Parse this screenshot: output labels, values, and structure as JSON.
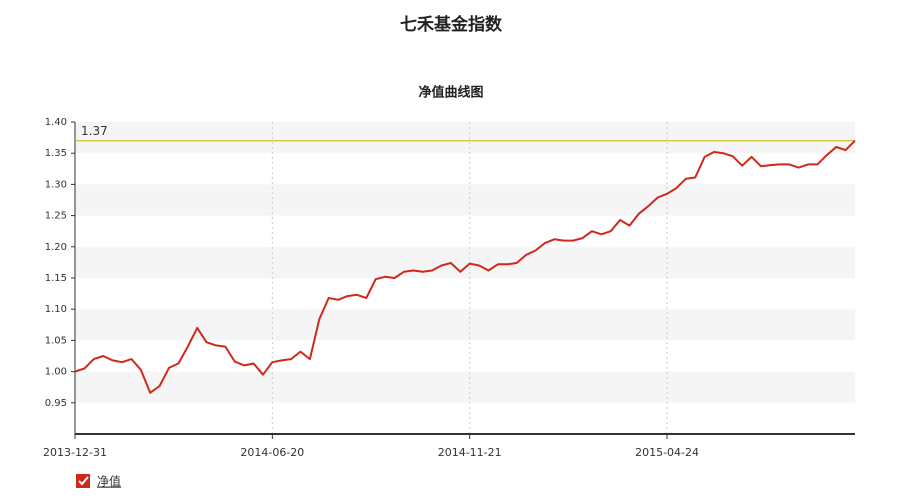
{
  "chart_data": {
    "type": "line",
    "title": "七禾基金指数",
    "subtitle": "净值曲线图",
    "categories": [
      "2013-12-31",
      null,
      null,
      null,
      null,
      null,
      null,
      null,
      null,
      null,
      null,
      null,
      null,
      null,
      null,
      null,
      null,
      null,
      null,
      null,
      null,
      "2014-06-20",
      null,
      null,
      null,
      null,
      null,
      null,
      null,
      null,
      null,
      null,
      null,
      null,
      null,
      null,
      null,
      null,
      null,
      null,
      null,
      null,
      "2014-11-21",
      null,
      null,
      null,
      null,
      null,
      null,
      null,
      null,
      null,
      null,
      null,
      null,
      null,
      null,
      null,
      null,
      null,
      null,
      null,
      null,
      "2015-04-24",
      null,
      null,
      null,
      null,
      null,
      null,
      null,
      null,
      null,
      null,
      null,
      null,
      null,
      null,
      null,
      null,
      null,
      null,
      null,
      null
    ],
    "series": [
      {
        "name": "净值",
        "color": "#d0281b",
        "values": [
          1.0,
          1.005,
          1.02,
          1.025,
          1.018,
          1.015,
          1.02,
          1.003,
          0.966,
          0.977,
          1.006,
          1.013,
          1.04,
          1.07,
          1.047,
          1.042,
          1.04,
          1.016,
          1.01,
          1.013,
          0.995,
          1.015,
          1.018,
          1.02,
          1.032,
          1.02,
          1.084,
          1.118,
          1.115,
          1.121,
          1.123,
          1.118,
          1.148,
          1.152,
          1.15,
          1.16,
          1.162,
          1.16,
          1.162,
          1.17,
          1.174,
          1.16,
          1.173,
          1.17,
          1.162,
          1.172,
          1.172,
          1.174,
          1.187,
          1.194,
          1.206,
          1.212,
          1.21,
          1.21,
          1.214,
          1.225,
          1.22,
          1.225,
          1.243,
          1.234,
          1.253,
          1.265,
          1.279,
          1.285,
          1.294,
          1.309,
          1.311,
          1.344,
          1.352,
          1.35,
          1.345,
          1.33,
          1.344,
          1.329,
          1.331,
          1.332,
          1.332,
          1.327,
          1.332,
          1.332,
          1.347,
          1.36,
          1.355,
          1.37
        ]
      }
    ],
    "mark_line": 1.37,
    "mark_line_color": "#c8b400",
    "ylim": [
      0.9,
      1.4
    ],
    "yticks": [
      0.95,
      {
        "value": 1.0,
        "label": "1.00"
      },
      1.05,
      {
        "value": 1.1,
        "label": "1.10"
      },
      1.15,
      {
        "value": 1.2,
        "label": "1.20"
      },
      1.25,
      {
        "value": 1.3,
        "label": "1.30"
      },
      1.35,
      {
        "value": 1.4,
        "label": "1.40"
      }
    ],
    "grid": true
  }
}
